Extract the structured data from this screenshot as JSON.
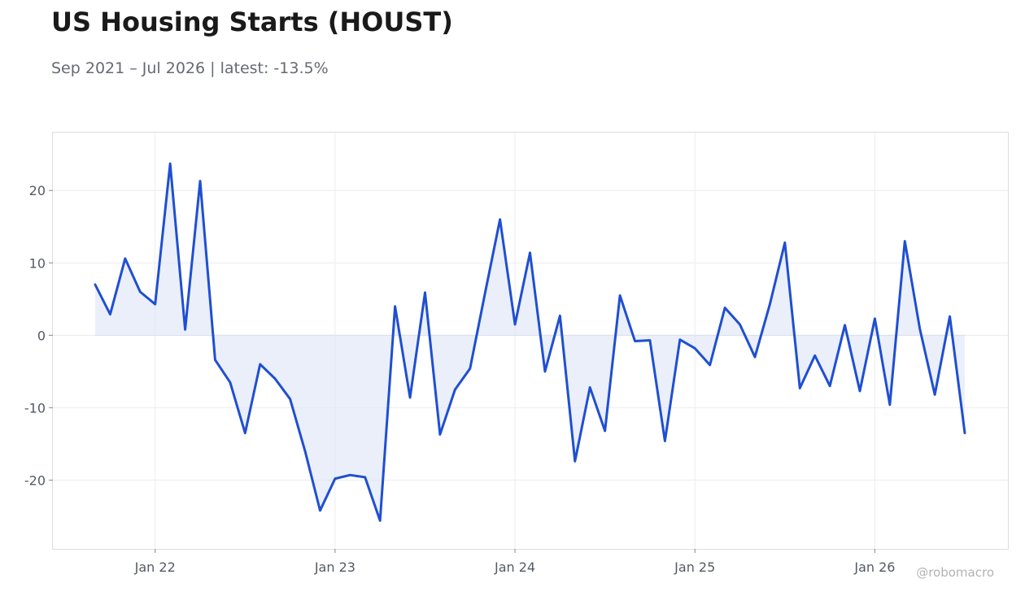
{
  "header": {
    "title": "US Housing Starts (HOUST)",
    "subtitle": "Sep 2021 – Jul 2026 | latest: -13.5%"
  },
  "watermark": "@robomacro",
  "colors": {
    "line": "#1f4fd1",
    "fill": "#dfe6f8",
    "grid": "#ececec",
    "frame": "#dddddd",
    "zero": "#d6dbe8"
  },
  "chart_data": {
    "type": "area",
    "title": "US Housing Starts (HOUST)",
    "xlabel": "",
    "ylabel": "",
    "x_start": "2021-09",
    "x_ticks": [
      {
        "label": "Jan 22",
        "date": "2022-01"
      },
      {
        "label": "Jan 23",
        "date": "2023-01"
      },
      {
        "label": "Jan 24",
        "date": "2024-01"
      },
      {
        "label": "Jan 25",
        "date": "2025-01"
      },
      {
        "label": "Jan 26",
        "date": "2026-01"
      }
    ],
    "y_ticks": [
      -20,
      -10,
      0,
      10,
      20
    ],
    "ylim": [
      -29.5,
      28
    ],
    "grid": true,
    "series": [
      {
        "values": [
          7.0,
          2.9,
          10.6,
          6.0,
          4.3,
          23.7,
          0.8,
          21.3,
          -3.4,
          -6.5,
          -13.5,
          -4.0,
          -6.0,
          -8.8,
          -16.0,
          -24.2,
          -19.8,
          -19.3,
          -19.6,
          -25.6,
          4.0,
          -8.6,
          5.9,
          -13.7,
          -7.5,
          -4.6,
          5.8,
          16.0,
          1.5,
          11.4,
          -5.0,
          2.7,
          -17.4,
          -7.2,
          -13.2,
          5.5,
          -0.8,
          -0.7,
          -14.6,
          -0.6,
          -1.8,
          -4.1,
          3.8,
          1.5,
          -3.0,
          4.3,
          12.8,
          -7.3,
          -2.8,
          -7.0,
          1.4,
          -7.7,
          2.3,
          -9.6,
          13.0,
          0.9,
          -8.2,
          2.6,
          -13.5
        ]
      }
    ]
  }
}
